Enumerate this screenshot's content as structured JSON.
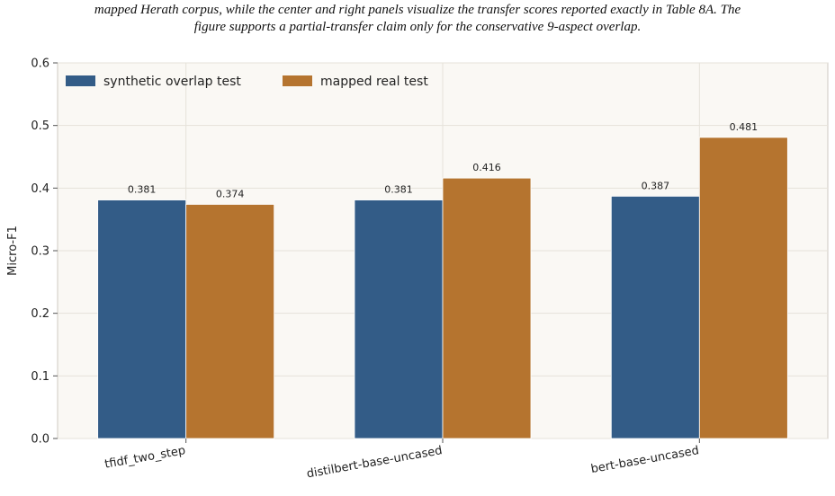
{
  "caption": {
    "line1": "mapped Herath corpus, while the center and right panels visualize the transfer scores reported exactly in Table 8A. The",
    "line2": "figure supports a partial-transfer  claim only for the conservative 9-aspect overlap."
  },
  "colors": {
    "synthetic": "#335c87",
    "mapped": "#b5742f",
    "plot_bg": "#faf8f4",
    "grid": "#e6e2da"
  },
  "chart_data": {
    "type": "bar",
    "categories": [
      "tfidf_two_step",
      "distilbert-base-uncased",
      "bert-base-uncased"
    ],
    "series": [
      {
        "name": "synthetic overlap test",
        "values": [
          0.381,
          0.381,
          0.387
        ]
      },
      {
        "name": "mapped real test",
        "values": [
          0.374,
          0.416,
          0.481
        ]
      }
    ],
    "data_labels": [
      [
        "0.381",
        "0.381",
        "0.387"
      ],
      [
        "0.374",
        "0.416",
        "0.481"
      ]
    ],
    "ylabel": "Micro-F1",
    "ylim": [
      0,
      0.6
    ],
    "yticks": [
      "0.0",
      "0.1",
      "0.2",
      "0.3",
      "0.4",
      "0.5",
      "0.6"
    ],
    "grid": true,
    "legend": "top-left"
  }
}
